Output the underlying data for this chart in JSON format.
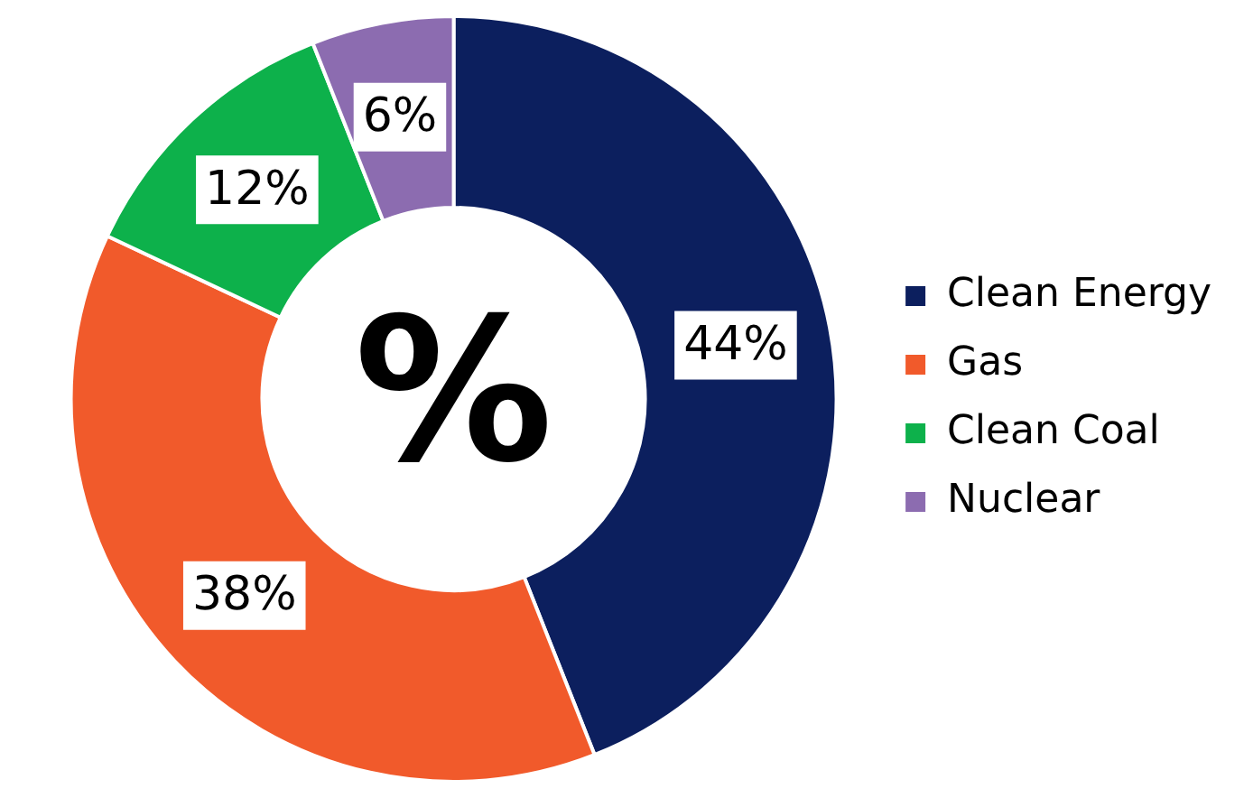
{
  "chart_data": {
    "type": "donut",
    "categories": [
      "Clean Energy",
      "Gas",
      "Clean Coal",
      "Nuclear"
    ],
    "values": [
      44,
      38,
      12,
      6
    ],
    "colors": [
      "#0c1f5e",
      "#f15a2b",
      "#0db14b",
      "#8c6cb0"
    ],
    "value_labels": [
      "44%",
      "38%",
      "12%",
      "6%"
    ],
    "annotations": [
      "%"
    ],
    "legend": "right"
  }
}
